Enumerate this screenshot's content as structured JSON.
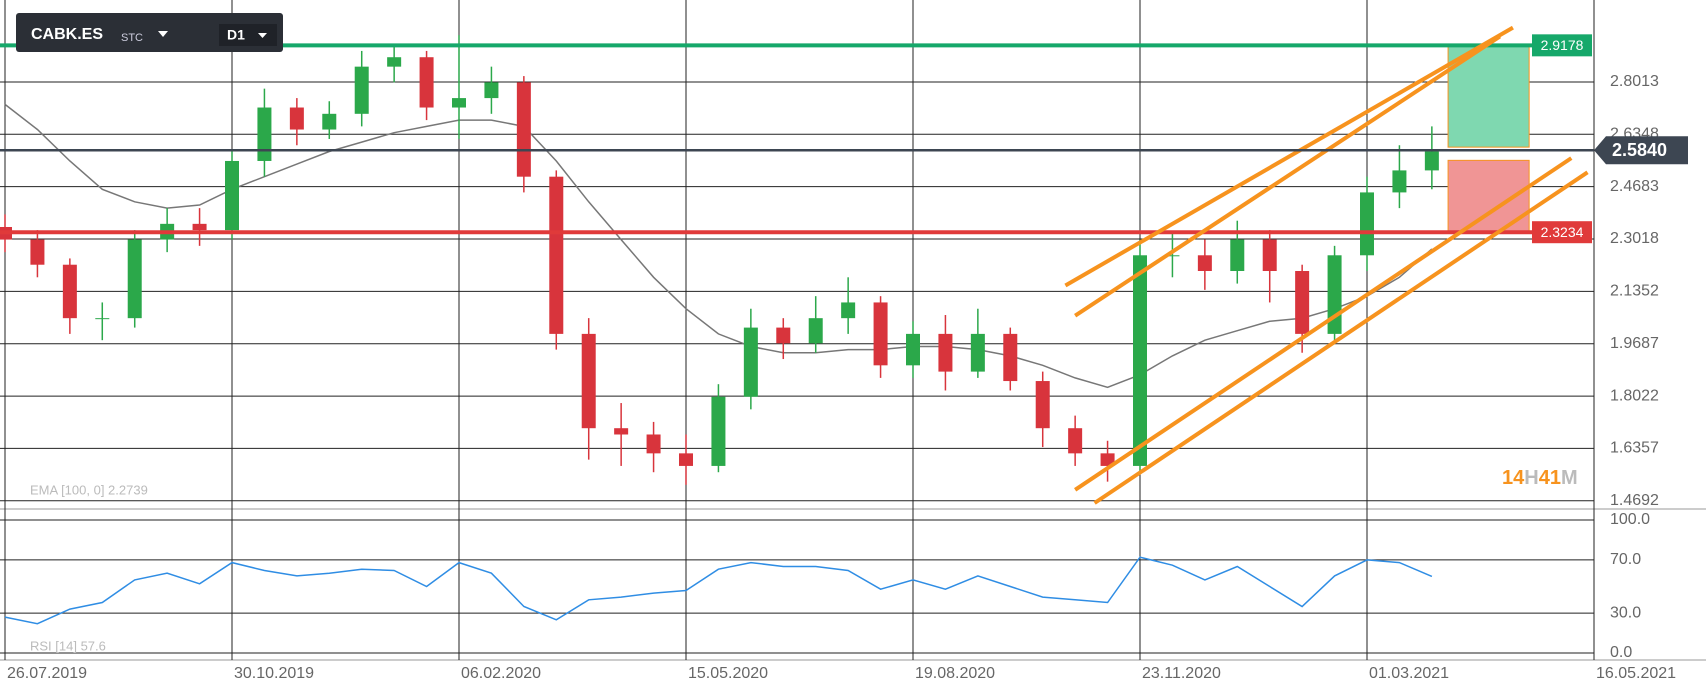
{
  "chart_data": {
    "type": "candlestick",
    "symbol": "CABK.ES",
    "market": "STC",
    "timeframe": "D1",
    "up_color": "#2ba84a",
    "down_color": "#d8343c",
    "open": [
      2.34,
      2.3,
      2.22,
      2.05,
      2.05,
      2.3,
      2.35,
      2.33,
      2.55,
      2.72,
      2.65,
      2.7,
      2.85,
      2.88,
      2.72,
      2.75,
      2.8,
      2.5,
      2.0,
      1.7,
      1.68,
      1.62,
      1.58,
      1.8,
      2.02,
      1.97,
      2.05,
      2.1,
      1.9,
      2.0,
      1.88,
      2.0,
      1.85,
      1.7,
      1.62,
      1.58,
      2.25,
      2.25,
      2.2,
      2.3,
      2.2,
      2.0,
      2.25,
      2.45,
      2.52
    ],
    "high": [
      2.38,
      2.33,
      2.24,
      2.1,
      2.33,
      2.4,
      2.4,
      2.58,
      2.78,
      2.75,
      2.74,
      2.9,
      2.92,
      2.9,
      2.95,
      2.85,
      2.82,
      2.52,
      2.05,
      1.78,
      1.72,
      1.68,
      1.84,
      2.08,
      2.05,
      2.12,
      2.18,
      2.12,
      2.04,
      2.06,
      2.08,
      2.02,
      1.88,
      1.74,
      1.66,
      2.3,
      2.32,
      2.3,
      2.36,
      2.33,
      2.22,
      2.28,
      2.5,
      2.6,
      2.66
    ],
    "low": [
      2.26,
      2.18,
      2.0,
      1.98,
      2.02,
      2.26,
      2.28,
      2.3,
      2.5,
      2.6,
      2.62,
      2.66,
      2.8,
      2.68,
      2.62,
      2.7,
      2.45,
      1.95,
      1.6,
      1.58,
      1.56,
      1.52,
      1.56,
      1.76,
      1.92,
      1.94,
      2.0,
      1.86,
      1.86,
      1.82,
      1.86,
      1.82,
      1.64,
      1.58,
      1.53,
      1.56,
      2.18,
      2.14,
      2.16,
      2.1,
      1.94,
      1.98,
      2.2,
      2.4,
      2.46
    ],
    "values": [
      2.3,
      2.22,
      2.05,
      2.05,
      2.3,
      2.35,
      2.33,
      2.55,
      2.72,
      2.65,
      2.7,
      2.85,
      2.88,
      2.72,
      2.75,
      2.8,
      2.5,
      2.0,
      1.7,
      1.68,
      1.62,
      1.58,
      1.8,
      2.02,
      1.97,
      2.05,
      2.1,
      1.9,
      2.0,
      1.88,
      2.0,
      1.85,
      1.7,
      1.62,
      1.58,
      2.25,
      2.25,
      2.2,
      2.3,
      2.2,
      2.0,
      2.25,
      2.45,
      2.52,
      2.58
    ],
    "ema": {
      "label": "EMA [100, 0] 2.2739",
      "color": "#777777",
      "values": [
        2.73,
        2.65,
        2.55,
        2.46,
        2.42,
        2.4,
        2.41,
        2.46,
        2.5,
        2.54,
        2.58,
        2.61,
        2.64,
        2.66,
        2.68,
        2.68,
        2.66,
        2.55,
        2.42,
        2.3,
        2.18,
        2.08,
        2.0,
        1.96,
        1.94,
        1.94,
        1.95,
        1.95,
        1.96,
        1.96,
        1.95,
        1.93,
        1.9,
        1.86,
        1.83,
        1.87,
        1.93,
        1.98,
        2.01,
        2.04,
        2.05,
        2.08,
        2.12,
        2.18,
        2.27
      ]
    },
    "rsi": {
      "label": "RSI [14] 57.6",
      "color": "#2f8de4",
      "axis": "y2",
      "values": [
        27,
        22,
        33,
        38,
        55,
        60,
        52,
        68,
        62,
        58,
        60,
        63,
        62,
        50,
        68,
        60,
        35,
        25,
        40,
        42,
        45,
        47,
        63,
        68,
        65,
        65,
        62,
        48,
        55,
        48,
        58,
        50,
        42,
        40,
        38,
        72,
        66,
        55,
        65,
        50,
        35,
        58,
        70,
        68,
        57.6
      ]
    },
    "xlim": [
      0,
      49
    ],
    "xticks": [
      {
        "value": 0,
        "label": "26.07.2019"
      },
      {
        "value": 7,
        "label": "30.10.2019"
      },
      {
        "value": 14,
        "label": "06.02.2020"
      },
      {
        "value": 21,
        "label": "15.05.2020"
      },
      {
        "value": 28,
        "label": "19.08.2020"
      },
      {
        "value": 35,
        "label": "23.11.2020"
      },
      {
        "value": 42,
        "label": "01.03.2021"
      },
      {
        "value": 49,
        "label": "16.05.2021"
      }
    ],
    "ylim": [
      1.443,
      3.062
    ],
    "yticks": [
      1.4692,
      1.6357,
      1.8022,
      1.9687,
      2.1352,
      2.3018,
      2.4683,
      2.6348,
      2.8013
    ],
    "y2lim": [
      0,
      100
    ],
    "y2ticks": [
      {
        "value": 0,
        "label": "0.0"
      },
      {
        "value": 30,
        "label": "30.0"
      },
      {
        "value": 70,
        "label": "70.0"
      },
      {
        "value": 100,
        "label": "100.0"
      }
    ],
    "grid": true,
    "current_price": {
      "value": 2.584,
      "label": "2.5840",
      "color": "#3d4652"
    },
    "levels": [
      {
        "value": 2.9178,
        "label": "2.9178",
        "color": "#16a86a"
      },
      {
        "value": 2.3234,
        "label": "2.3234",
        "color": "#e03a3a"
      }
    ],
    "zones": [
      {
        "x": [
          44.5,
          47.0
        ],
        "y": [
          2.9178,
          2.594
        ],
        "color": "#7fd8b0"
      },
      {
        "x": [
          44.5,
          47.0
        ],
        "y": [
          2.552,
          2.3234
        ],
        "color": "#f09595"
      }
    ],
    "trendlines": {
      "color": "#f7931e",
      "lines": [
        {
          "x": [
            32.7,
            46.5
          ],
          "y": [
            2.154,
            2.974
          ]
        },
        {
          "x": [
            33.0,
            46.1
          ],
          "y": [
            2.058,
            2.946
          ]
        },
        {
          "x": [
            33.0,
            48.3
          ],
          "y": [
            1.504,
            2.559
          ]
        },
        {
          "x": [
            33.6,
            48.8
          ],
          "y": [
            1.462,
            2.514
          ]
        }
      ]
    },
    "timer": [
      "14",
      "H",
      "41",
      "M"
    ]
  }
}
